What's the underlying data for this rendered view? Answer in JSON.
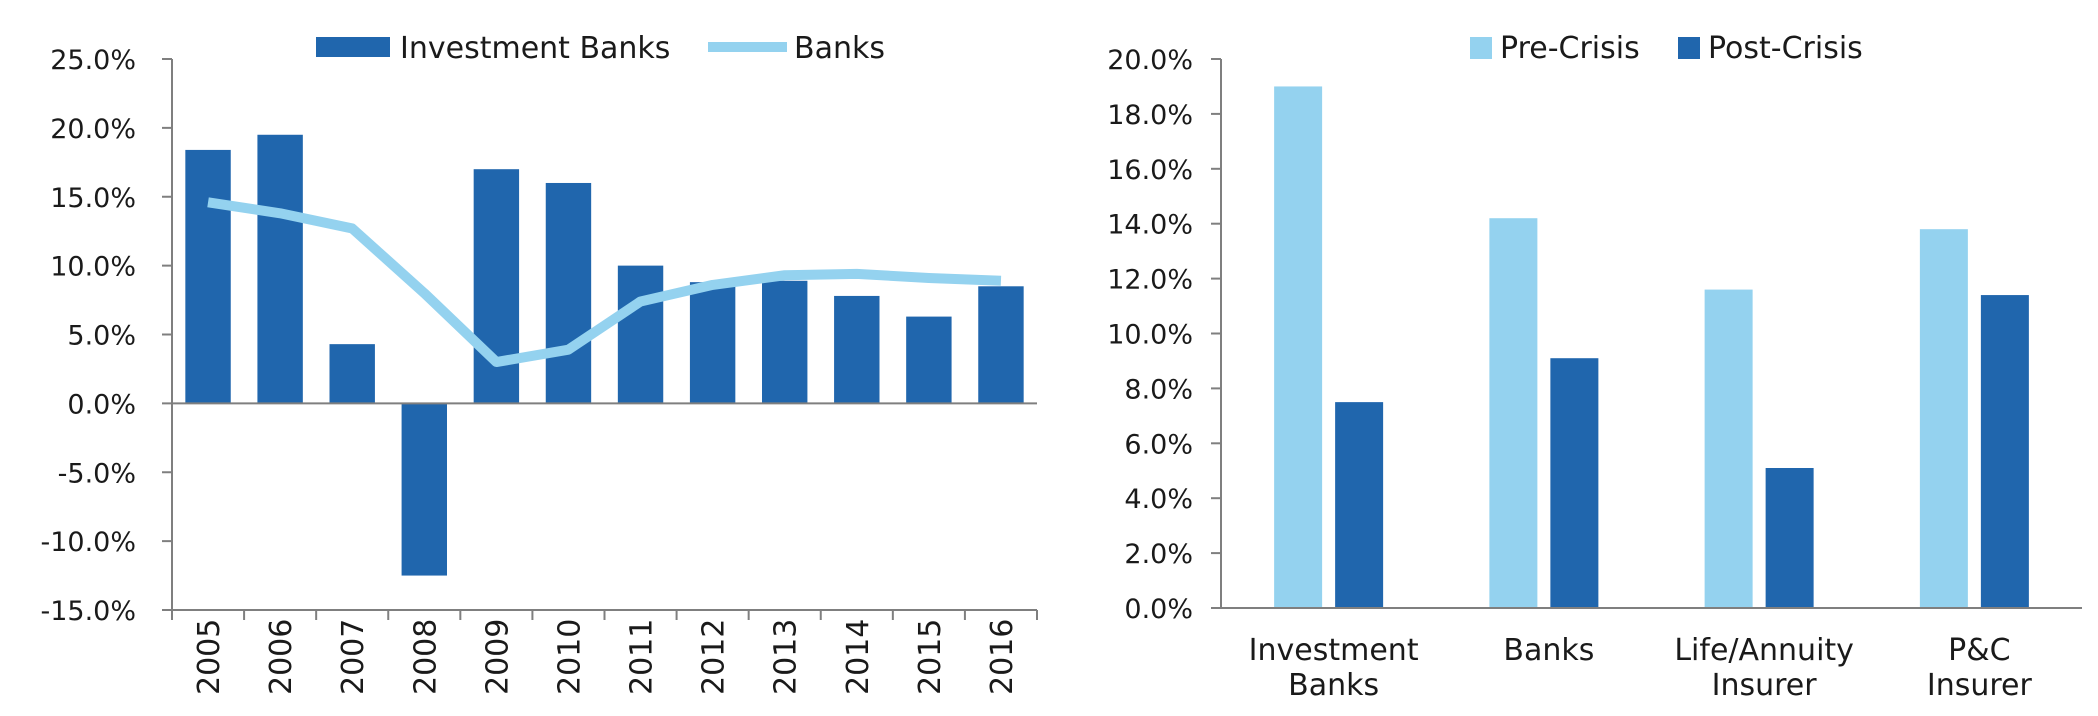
{
  "colors": {
    "dark_blue": "#2066ad",
    "light_blue": "#94d2ef",
    "axis": "#7f7f7f"
  },
  "chart_data": [
    {
      "type": "bar",
      "categories": [
        "2005",
        "2006",
        "2007",
        "2008",
        "2009",
        "2010",
        "2011",
        "2012",
        "2013",
        "2014",
        "2015",
        "2016"
      ],
      "series": [
        {
          "name": "Investment Banks",
          "type": "bar",
          "values": [
            18.4,
            19.5,
            4.3,
            -12.5,
            17.0,
            16.0,
            10.0,
            8.8,
            8.9,
            7.8,
            6.3,
            8.5
          ]
        },
        {
          "name": "Banks",
          "type": "line",
          "values": [
            14.6,
            13.8,
            12.7,
            8.0,
            3.0,
            3.9,
            7.4,
            8.6,
            9.3,
            9.4,
            9.1,
            8.9
          ]
        }
      ],
      "ylim": [
        -15,
        25
      ],
      "yticks": [
        "-15.0%",
        "-10.0%",
        "-5.0%",
        "0.0%",
        "5.0%",
        "10.0%",
        "15.0%",
        "20.0%",
        "25.0%"
      ],
      "legend": "top",
      "grid": false
    },
    {
      "type": "bar",
      "categories": [
        [
          "Investment",
          "Banks"
        ],
        [
          "Banks"
        ],
        [
          "Life/Annuity",
          "Insurer"
        ],
        [
          "P&C",
          "Insurer"
        ]
      ],
      "series": [
        {
          "name": "Pre-Crisis",
          "values": [
            19.0,
            14.2,
            11.6,
            13.8
          ]
        },
        {
          "name": "Post-Crisis",
          "values": [
            7.5,
            9.1,
            5.1,
            11.4
          ]
        }
      ],
      "ylim": [
        0,
        20
      ],
      "yticks": [
        "0.0%",
        "2.0%",
        "4.0%",
        "6.0%",
        "8.0%",
        "10.0%",
        "12.0%",
        "14.0%",
        "16.0%",
        "18.0%",
        "20.0%"
      ],
      "legend": "top",
      "grid": false
    }
  ]
}
